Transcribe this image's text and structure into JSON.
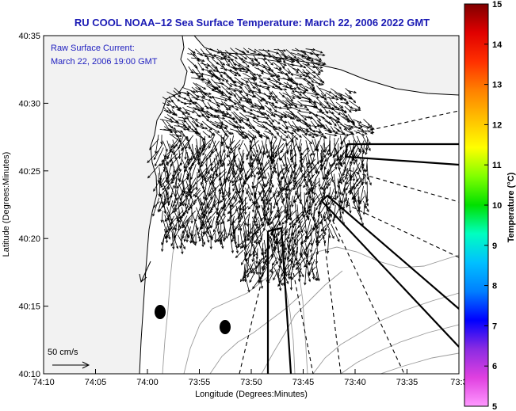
{
  "title": "RU COOL  NOAA–12  Sea Surface Temperature:  March 22, 2006 2022 GMT",
  "annotation": {
    "line1": "Raw Surface Current:",
    "line2": "March 22, 2006 19:00 GMT",
    "scale_label": "50 cm/s"
  },
  "axes": {
    "xlabel": "Longitude (Degrees:Minutes)",
    "ylabel": "Latitude (Degrees:Minutes)",
    "x_ticks": [
      "74:10",
      "74:05",
      "74:00",
      "73:55",
      "73:50",
      "73:45",
      "73:40",
      "73:35",
      "73:3"
    ],
    "y_ticks": [
      "40:35",
      "40:30",
      "40:25",
      "40:20",
      "40:15",
      "40:10"
    ]
  },
  "colorbar": {
    "label": "Temperature (°C)",
    "ticks": [
      "15",
      "14",
      "13",
      "12",
      "11",
      "10",
      "9",
      "8",
      "7",
      "6",
      "5"
    ],
    "range": [
      5,
      15
    ],
    "colors": [
      "#ff99ff",
      "#e040e0",
      "#8a2be2",
      "#0000ff",
      "#0080ff",
      "#00c0ff",
      "#00ffc0",
      "#00e000",
      "#80ff00",
      "#ffff00",
      "#ffc000",
      "#ff8000",
      "#ff3000",
      "#e00000",
      "#800000"
    ]
  },
  "map": {
    "land_color": "#f4f4f4",
    "ocean_color": "#ffffff",
    "current_arrow_color": "#000000",
    "markers": [
      "station-dot",
      "station-dot"
    ]
  }
}
